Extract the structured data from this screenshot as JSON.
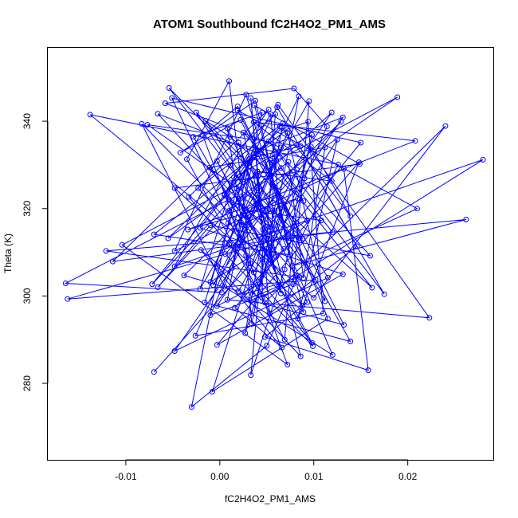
{
  "chart_data": {
    "type": "line",
    "title": "ATOM1 Southbound fC2H4O2_PM1_AMS",
    "xlabel": "fC2H4O2_PM1_AMS",
    "ylabel": "Theta (K)",
    "xlim": [
      -0.0183,
      0.0291
    ],
    "ylim": [
      262.5,
      356.8
    ],
    "x_ticks": [
      -0.01,
      0.0,
      0.01,
      0.02
    ],
    "x_tick_labels": [
      "-0.01",
      "0.00",
      "0.01",
      "0.02"
    ],
    "y_ticks": [
      280,
      300,
      320,
      340
    ],
    "y_tick_labels": [
      "280",
      "300",
      "320",
      "340"
    ],
    "grid": false,
    "legend": "none",
    "series_color": "#0000ff",
    "markers": "open circles connected by lines",
    "series": [
      {
        "x": [
          -0.007,
          0.0033,
          0.001,
          -0.0035,
          0.0069,
          0.0079,
          0.0019,
          -0.0018,
          0.0072,
          -0.0104,
          0.0058,
          0.0119,
          -0.0007,
          0.004,
          0.0065,
          0.002,
          0.006,
          0.0035,
          0.0008,
          0.0093,
          0.0048,
          0.0158,
          0.0132,
          -0.0048,
          0.0028,
          0.0055,
          0.0189,
          0.0056,
          0.0025,
          0.0063,
          0.0029,
          0.0132,
          0.0022,
          -0.0042,
          0.0038,
          0.0075,
          -0.007,
          0.0072,
          0.0094,
          0.011,
          -0.0026,
          0.004,
          0.0088,
          0.0019,
          0.021,
          0.0077,
          0.0262,
          0.0073,
          -0.0162,
          0.0102,
          -0.0054,
          0.0039,
          0.0045,
          0.0033,
          0.0053,
          0.0146,
          0.0061,
          0.0175,
          0.0052,
          0.016,
          -0.001,
          -0.0066,
          0.0023,
          0.0085,
          0.0126,
          -0.0138,
          0.01,
          0.024,
          0.0048,
          -0.002,
          0.0066,
          0.0016,
          0.0148,
          0.0083,
          0.0125,
          0.0036,
          0.001,
          0.0065,
          0.012,
          -0.0114,
          0.0052,
          0.0011,
          -0.0048,
          0.028,
          0.0045,
          0.0046,
          -0.0008,
          0.0115,
          0.0044,
          0.0162,
          0.003,
          0.0013,
          -0.0048,
          0.0115,
          0.0036,
          0.0008,
          0.0223,
          0.0062,
          0.0018,
          0.0009,
          -0.003,
          0.005,
          0.0083,
          0.001,
          -0.0164,
          0.0002,
          0.0072,
          0.0112,
          0.0038,
          -0.0055,
          0.0066,
          0.0139,
          0.0097,
          0.0054,
          0.0057,
          0.0089,
          0.001,
          0.0045,
          -0.0028,
          0.0099,
          0.0006,
          0.0129,
          -0.0038,
          0.002,
          0.005,
          0.0059,
          -0.0033,
          0.0098,
          -0.0003,
          0.0054,
          0.002,
          0.0073,
          0.0089,
          0.0112,
          -0.0011,
          0.0053,
          0.015,
          -0.0051,
          0.0028,
          0.0034,
          0.0062,
          0.0028,
          0.0108,
          -0.0003,
          0.0131,
          -0.0021,
          0.0064,
          -0.0072,
          0.004,
          0.0119,
          0.0036,
          0.0208,
          -0.0034,
          0.0083,
          0.0023,
          -0.0083,
          0.0005,
          0.012,
          0.0031,
          -0.0016,
          0.0139,
          0.0064,
          0.0054,
          0.0005,
          0.0038,
          0.0131,
          -0.0003,
          0.0043,
          0.0068,
          0.0056,
          0.0084,
          -0.0003,
          0.0086,
          0.0049,
          -0.0015,
          0.0011,
          0.0089,
          0.006,
          -0.0066,
          0.0068,
          0.0025,
          0.0085,
          -0.0121,
          0.0022,
          0.0062,
          -0.001,
          0.0078,
          0.0095,
          -0.0021,
          0.0015,
          0.0098,
          0.0073,
          0.0037,
          0.0149,
          -0.0048,
          0.0088,
          0.0005,
          0.0054,
          -0.0025,
          0.0093,
          -0.001,
          0.0032,
          0.0086,
          -0.0077,
          0.0058,
          0.0082,
          0.0027,
          0.0067,
          -0.0023,
          0.0045,
          0.0033,
          0.0069,
          0.009,
          0.0114,
          0.0079,
          -0.0058,
          0.0065
        ],
        "y": [
          282.6,
          307.4,
          349.2,
          331.3,
          290.0,
          316.0,
          343.4,
          336.7,
          284.3,
          311.7,
          329.8,
          342.0,
          302.5,
          321.3,
          300.6,
          335.1,
          309.0,
          300.3,
          338.4,
          298.6,
          290.6,
          283.0,
          329.1,
          310.3,
          346.1,
          325.8,
          345.5,
          330.5,
          337.4,
          302.3,
          299.2,
          293.4,
          340.3,
          332.8,
          344.7,
          309.4,
          314.1,
          338.2,
          339.9,
          296.0,
          290.9,
          323.1,
          313.1,
          342.5,
          320.0,
          306.9,
          317.5,
          313.7,
          299.3,
          303.7,
          347.6,
          327.5,
          317.9,
          345.3,
          296.0,
          311.4,
          343.2,
          300.4,
          335.4,
          309.2,
          316.2,
          302.0,
          322.8,
          312.7,
          330.1,
          341.5,
          299.6,
          338.9,
          298.5,
          310.5,
          288.2,
          297.3,
          330.6,
          294.8,
          335.8,
          305.4,
          319.5,
          329.3,
          314.6,
          307.9,
          342.7,
          329.9,
          306.8,
          331.2,
          299.6,
          315.2,
          278.1,
          294.8,
          333.4,
          301.9,
          327.1,
          306.4,
          287.4,
          304.2,
          332.6,
          299.1,
          295.0,
          343.8,
          324.6,
          316.7,
          274.6,
          288.6,
          304.6,
          322.1,
          302.9,
          300.8,
          337.3,
          298.8,
          327.5,
          313.2,
          338.5,
          318.3,
          334.2,
          307.4,
          325.2,
          296.3,
          311.8,
          342.0,
          336.4,
          288.5,
          309.6,
          339.9,
          304.7,
          301.1,
          313.1,
          341.6,
          322.7,
          289.3,
          330.9,
          308.2,
          322.3,
          330.7,
          304.1,
          334.0,
          329.4,
          309.5,
          335.1,
          345.3,
          309.3,
          293.6,
          324.1,
          319.7,
          317.3,
          288.8,
          305.0,
          315.6,
          338.8,
          302.7,
          328.5,
          326.3,
          339.8,
          335.5,
          315.2,
          322.3,
          316.3,
          339.4,
          302.1,
          286.5,
          331.3,
          298.5,
          289.6,
          318.3,
          341.6,
          323.3,
          333.1,
          340.9,
          297.7,
          302.8,
          321.0,
          314.3,
          345.7,
          306.8,
          286.2,
          319.2,
          340.1,
          336.4,
          321.7,
          331.1,
          341.7,
          310.8,
          300.3,
          304.3,
          310.3,
          312.9,
          332.9,
          295.6,
          302.7,
          344.6,
          301.6,
          327.2,
          336.9,
          312.6,
          343.6,
          330.2,
          324.7,
          297.8,
          323.1,
          315.8,
          342.0,
          317.3,
          303.2,
          331.5,
          334.3,
          339.2,
          318.8,
          328.9,
          291.5,
          339.5,
          324.7,
          308.3,
          281.9,
          306.1,
          326.9,
          338.8,
          347.5,
          344.1,
          334.0
        ]
      }
    ]
  }
}
